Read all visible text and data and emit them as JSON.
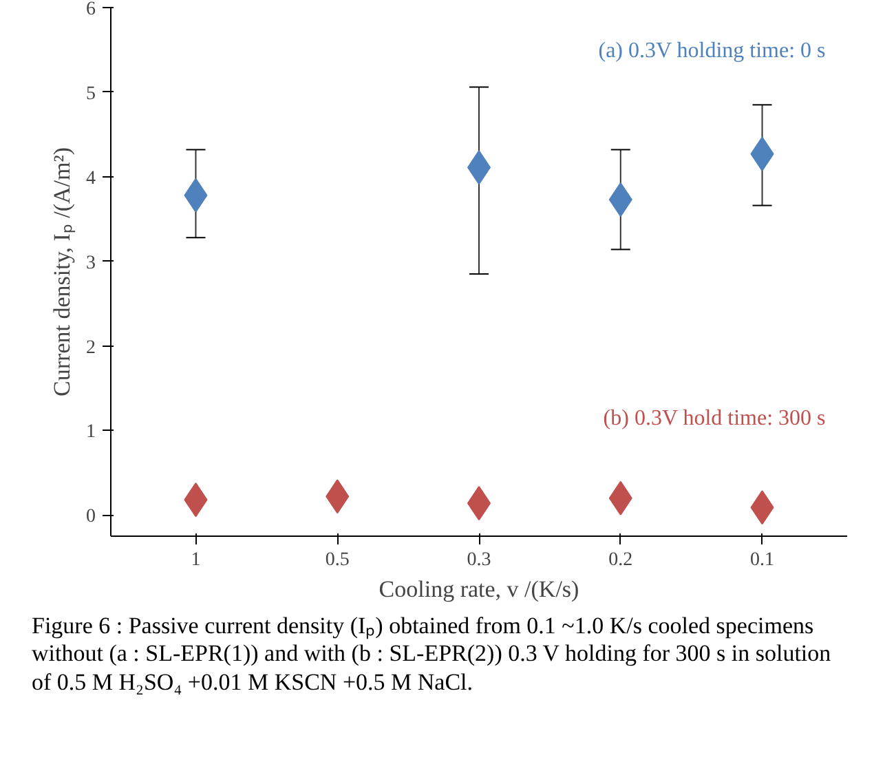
{
  "chart_data": {
    "type": "scatter",
    "xlabel": "Cooling rate, v /(K/s)",
    "ylabel": "Current density, Iₚ /(A/m²)",
    "categories": [
      "1",
      "0.5",
      "0.3",
      "0.2",
      "0.1"
    ],
    "series": [
      {
        "name": "(a) 0.3V holding time: 0 s",
        "color": "#4f81bd",
        "values": [
          3.78,
          null,
          4.11,
          3.73,
          4.27
        ],
        "errors": [
          [
            3.28,
            4.32
          ],
          null,
          [
            2.85,
            5.06
          ],
          [
            3.14,
            4.32
          ],
          [
            3.66,
            4.85
          ]
        ]
      },
      {
        "name": "(b) 0.3V hold time: 300 s",
        "color": "#c0504d",
        "values": [
          0.18,
          0.22,
          0.14,
          0.2,
          0.09
        ]
      }
    ],
    "ylim": [
      -0.25,
      6
    ],
    "yticks": [
      0,
      1,
      2,
      3,
      4,
      5,
      6
    ],
    "grid": false,
    "legend": false,
    "marker": "diamond",
    "annotations": [
      "Figure 6 : Passive current density (Iₚ) obtained from 0.1 ~1.0 K/s cooled specimens without (a : SL-EPR(1)) and with (b : SL-EPR(2)) 0.3 V holding for 300 s in solution of 0.5 M H₂SO₄ +0.01 M KSCN +0.5 M NaCl."
    ]
  }
}
